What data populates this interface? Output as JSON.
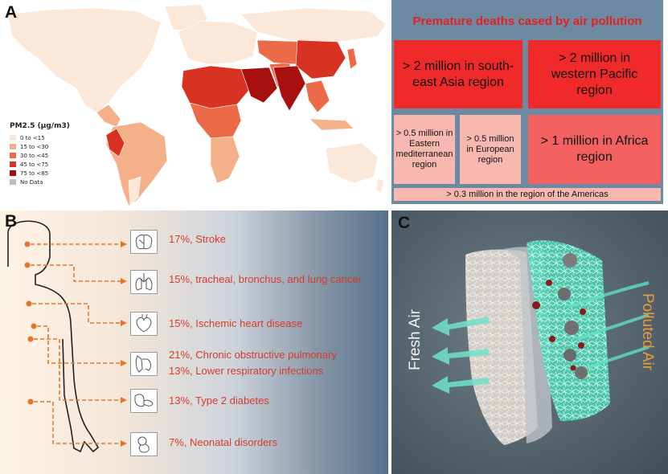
{
  "panel_a": {
    "letter": "A",
    "legend": {
      "title": "PM2.5 (μg/m3)",
      "items": [
        {
          "label": "0 to <15",
          "color": "#fce8d8"
        },
        {
          "label": "15 to <30",
          "color": "#f4b088"
        },
        {
          "label": "30 to <45",
          "color": "#ec6a48"
        },
        {
          "label": "45 to <75",
          "color": "#d83222"
        },
        {
          "label": "75 to <85",
          "color": "#a81010"
        },
        {
          "label": "No Data",
          "color": "#bdbdbd"
        }
      ]
    },
    "deaths": {
      "title": "Premature deaths cased by air pollution",
      "southeast_asia": "> 2 million in south-east Asia region",
      "western_pacific": "> 2 million in western Pacific region",
      "eastern_med": "> 0.5 million in Eastern mediterranean region",
      "european": "> 0.5 million in European region",
      "africa": "> 1 million in Africa region",
      "americas": "> 0.3 million in the region of the Americas"
    }
  },
  "panel_b": {
    "letter": "B",
    "items": [
      {
        "icon": "brain-icon",
        "text": "17%, Stroke"
      },
      {
        "icon": "lungs-icon",
        "text": "15%, tracheal, bronchus, and lung cancer"
      },
      {
        "icon": "heart-icon",
        "text": "15%, Ischemic heart disease"
      },
      {
        "icon": "respiratory-icon",
        "line1": "21%, Chronic obstructive pulmonary",
        "line2": "13%, Lower respiratory infections"
      },
      {
        "icon": "pancreas-icon",
        "text": "13%, Type 2 diabetes"
      },
      {
        "icon": "fetus-icon",
        "text": "7%, Neonatal disorders"
      }
    ]
  },
  "panel_c": {
    "letter": "C",
    "fresh_air": "Fresh Air",
    "polluted_air": "Polluted Air"
  }
}
